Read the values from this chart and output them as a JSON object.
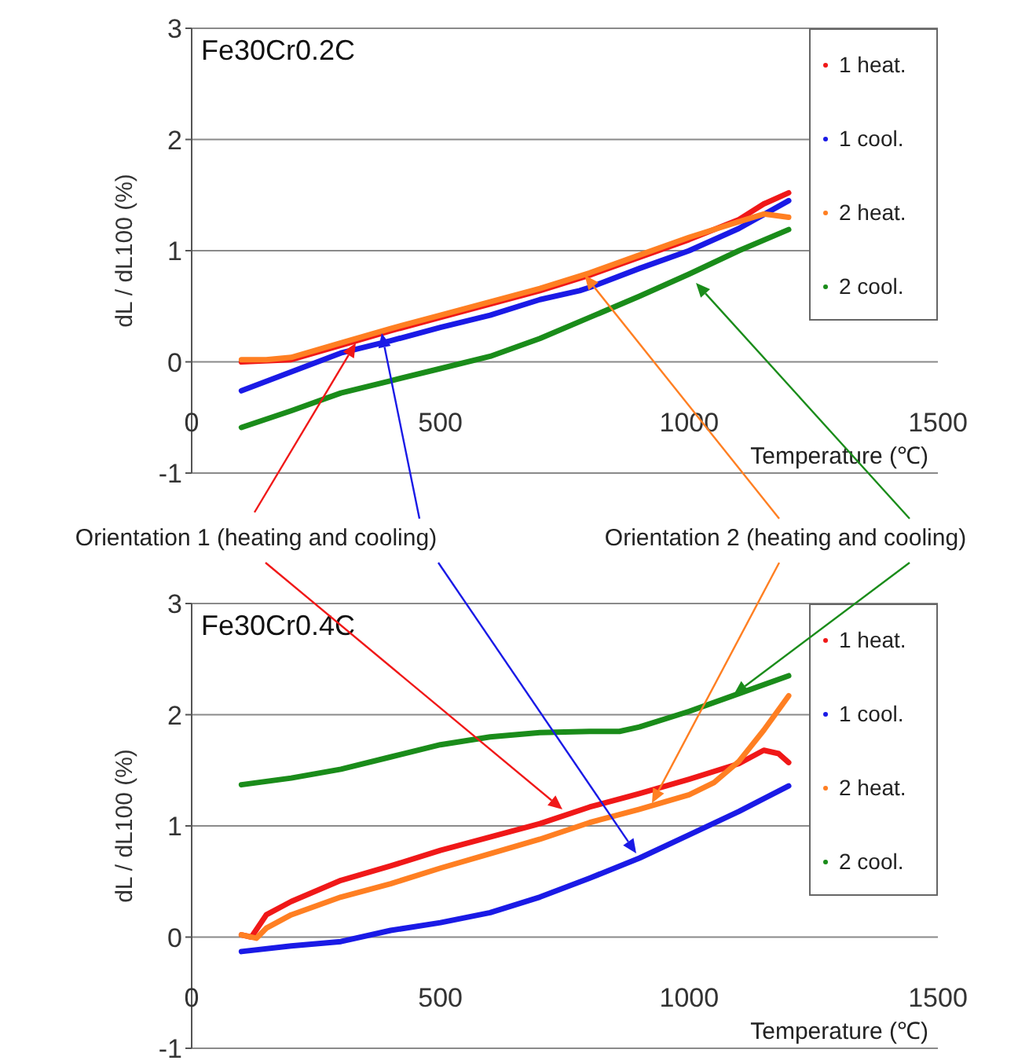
{
  "chart_data": [
    {
      "type": "line",
      "title": "Fe30Cr0.2C",
      "xlabel": "Temperature (℃)",
      "ylabel": "dL / dL100 (%)",
      "xlim": [
        0,
        1500
      ],
      "xticks": [
        0,
        500,
        1000,
        1500
      ],
      "ylim": [
        -1,
        3
      ],
      "yticks": [
        -1,
        0,
        1,
        2,
        3
      ],
      "grid": "y",
      "legend": "top right",
      "marker": "none",
      "line_style": "solid",
      "annotations": [
        {
          "text": "Orientation 1 (heating and cooling)",
          "x": 330,
          "y": 0.17
        },
        {
          "text": "Orientation 2 (heating and cooling)",
          "x": 790,
          "y": 0.78
        }
      ],
      "series": [
        {
          "name": "1 heat.",
          "color": "#f01818",
          "x": [
            100,
            200,
            300,
            400,
            500,
            600,
            700,
            800,
            900,
            1000,
            1100,
            1150,
            1200
          ],
          "values": [
            0.0,
            0.02,
            0.15,
            0.28,
            0.4,
            0.52,
            0.64,
            0.78,
            0.94,
            1.1,
            1.28,
            1.42,
            1.52
          ]
        },
        {
          "name": "1 cool.",
          "color": "#1a1ae6",
          "x": [
            100,
            300,
            400,
            500,
            600,
            700,
            780,
            800,
            900,
            1000,
            1100,
            1200
          ],
          "values": [
            -0.26,
            0.08,
            0.19,
            0.31,
            0.42,
            0.56,
            0.64,
            0.67,
            0.84,
            1.0,
            1.2,
            1.45
          ]
        },
        {
          "name": "2 heat.",
          "color": "#ff7f22",
          "x": [
            100,
            150,
            200,
            300,
            400,
            500,
            600,
            700,
            800,
            900,
            1000,
            1100,
            1150,
            1200
          ],
          "values": [
            0.02,
            0.02,
            0.04,
            0.17,
            0.3,
            0.42,
            0.54,
            0.66,
            0.8,
            0.96,
            1.12,
            1.26,
            1.33,
            1.3
          ]
        },
        {
          "name": "2 cool.",
          "color": "#1a8c1a",
          "x": [
            100,
            200,
            300,
            400,
            500,
            600,
            700,
            800,
            900,
            1000,
            1100,
            1200
          ],
          "values": [
            -0.59,
            -0.44,
            -0.28,
            -0.17,
            -0.06,
            0.05,
            0.21,
            0.4,
            0.59,
            0.79,
            1.0,
            1.19
          ]
        }
      ]
    },
    {
      "type": "line",
      "title": "Fe30Cr0.4C",
      "xlabel": "Temperature (℃)",
      "ylabel": "dL / dL100 (%)",
      "xlim": [
        0,
        1500
      ],
      "xticks": [
        0,
        500,
        1000,
        1500
      ],
      "ylim": [
        -1,
        3
      ],
      "yticks": [
        -1,
        0,
        1,
        2,
        3
      ],
      "grid": "y",
      "legend": "top right",
      "marker": "none",
      "line_style": "solid",
      "series": [
        {
          "name": "1 heat.",
          "color": "#f01818",
          "x": [
            100,
            120,
            150,
            200,
            300,
            400,
            500,
            600,
            700,
            800,
            900,
            1000,
            1100,
            1150,
            1180,
            1200
          ],
          "values": [
            0.02,
            0.0,
            0.2,
            0.32,
            0.51,
            0.64,
            0.78,
            0.9,
            1.02,
            1.17,
            1.29,
            1.42,
            1.56,
            1.68,
            1.65,
            1.57
          ]
        },
        {
          "name": "1 cool.",
          "color": "#1a1ae6",
          "x": [
            100,
            200,
            300,
            400,
            500,
            600,
            700,
            800,
            900,
            1000,
            1100,
            1200
          ],
          "values": [
            -0.13,
            -0.08,
            -0.04,
            0.06,
            0.13,
            0.22,
            0.36,
            0.53,
            0.71,
            0.92,
            1.13,
            1.36
          ]
        },
        {
          "name": "2 heat.",
          "color": "#ff7f22",
          "x": [
            100,
            130,
            150,
            200,
            300,
            400,
            500,
            600,
            700,
            800,
            900,
            1000,
            1050,
            1100,
            1150,
            1200
          ],
          "values": [
            0.02,
            -0.01,
            0.08,
            0.2,
            0.36,
            0.48,
            0.62,
            0.75,
            0.88,
            1.03,
            1.15,
            1.28,
            1.39,
            1.58,
            1.86,
            2.17
          ]
        },
        {
          "name": "2 cool.",
          "color": "#1a8c1a",
          "x": [
            100,
            200,
            300,
            400,
            500,
            600,
            700,
            800,
            860,
            900,
            1000,
            1100,
            1200
          ],
          "values": [
            1.37,
            1.43,
            1.51,
            1.62,
            1.73,
            1.8,
            1.84,
            1.85,
            1.85,
            1.89,
            2.03,
            2.19,
            2.35
          ]
        }
      ]
    }
  ]
}
